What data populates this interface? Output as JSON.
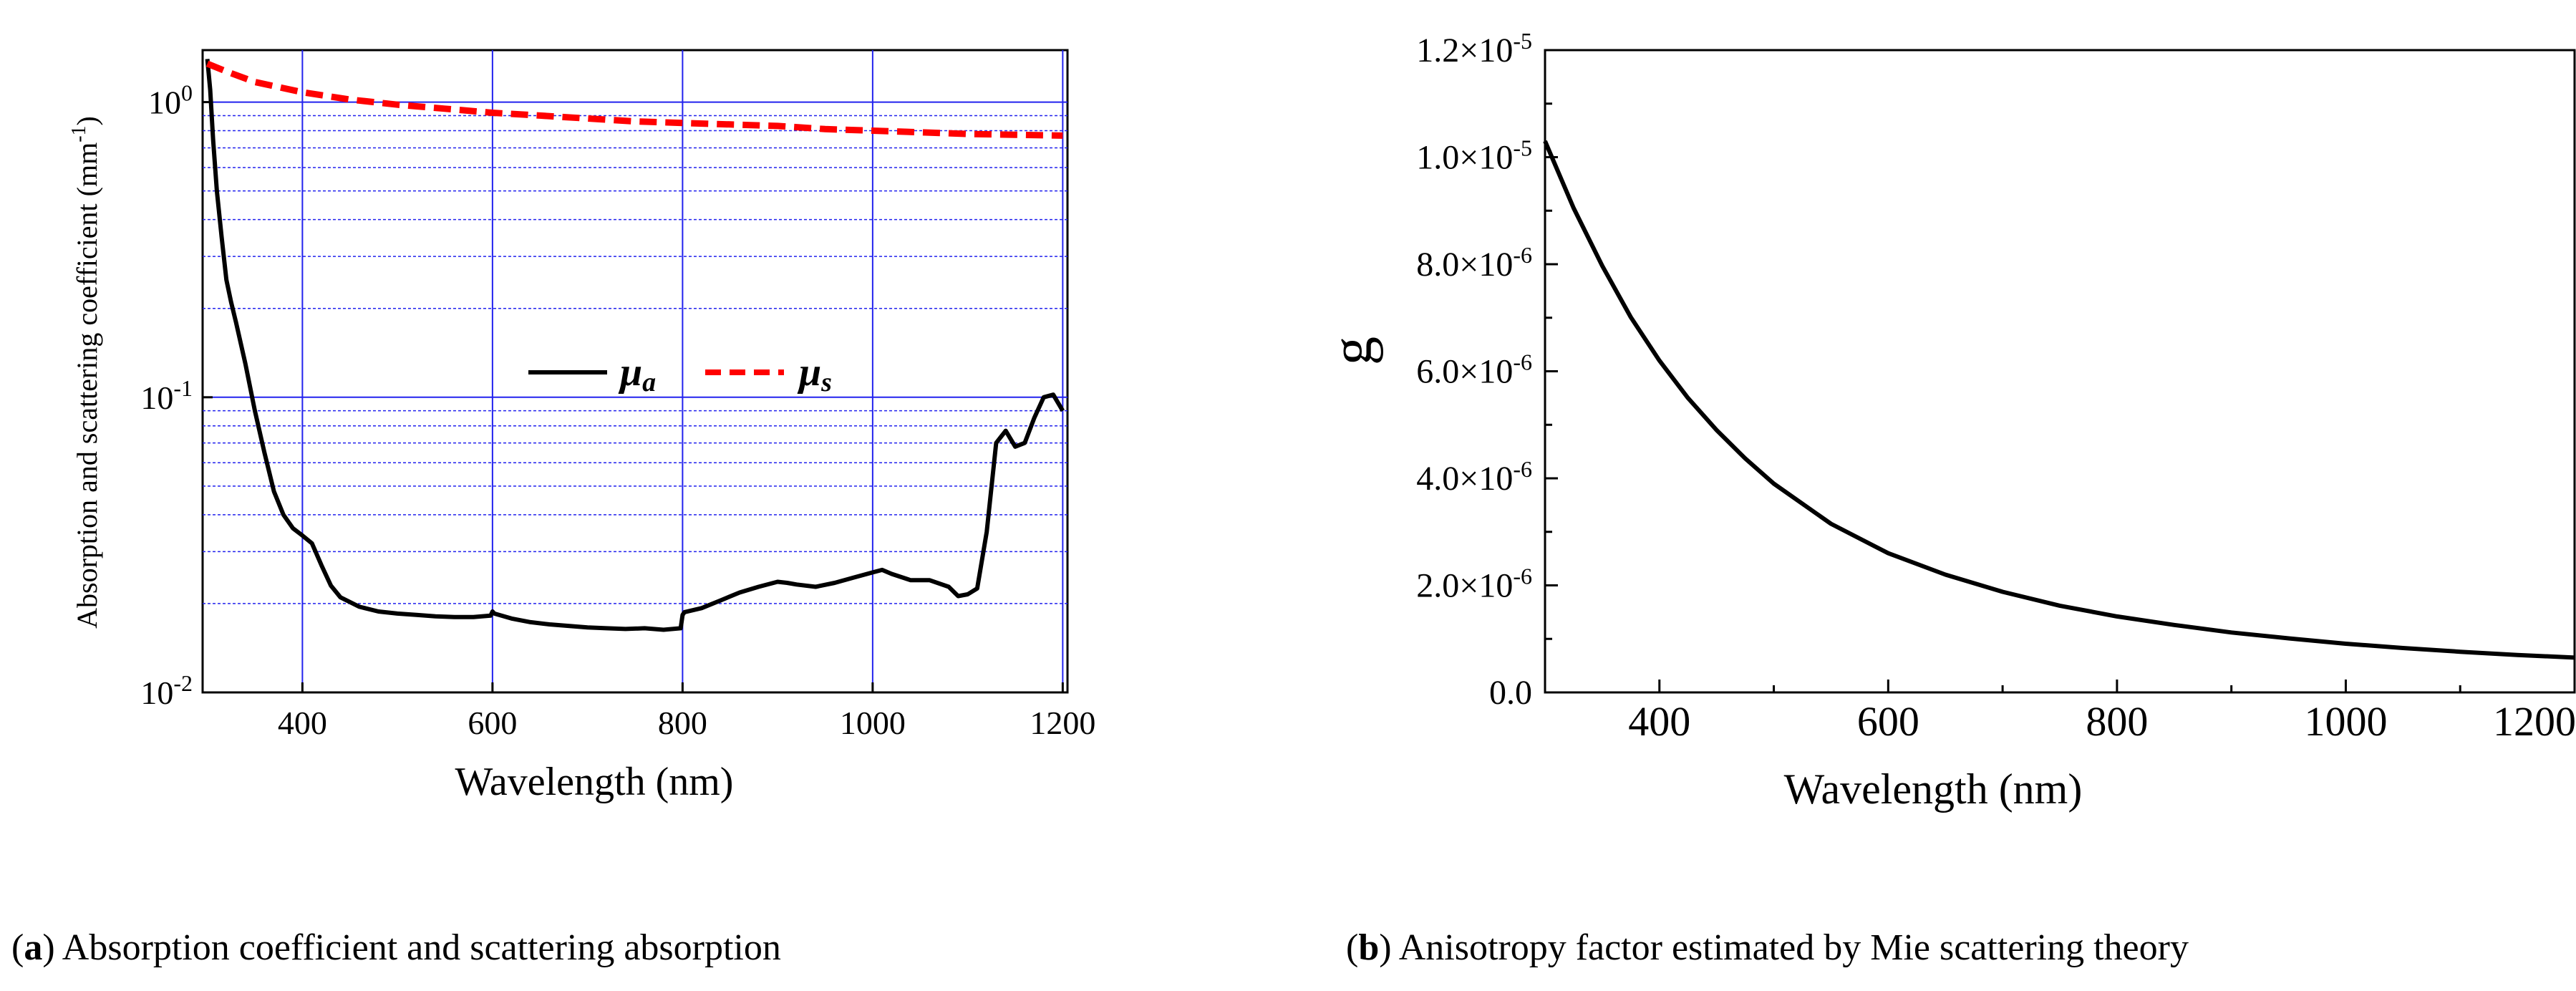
{
  "chart_data": [
    {
      "type": "line",
      "panel": "a",
      "caption_label": "a",
      "caption": "Absorption coefficient and scattering absorption",
      "xlabel": "Wavelength (nm)",
      "ylabel_main": "Absorption  and scattering coefficient (mm",
      "ylabel_sup": "-1",
      "ylabel_close": ")",
      "yscale": "log",
      "xlim": [
        295,
        1205
      ],
      "ylim": [
        0.01,
        1.5
      ],
      "grid": true,
      "xticks": [
        "400",
        "600",
        "800",
        "1000",
        "1200"
      ],
      "yticks": [
        {
          "base": "10",
          "exp": "-2",
          "value": 0.01
        },
        {
          "base": "10",
          "exp": "-1",
          "value": 0.1
        },
        {
          "base": "10",
          "exp": "0",
          "value": 1
        }
      ],
      "legend_position": "center-right",
      "series": [
        {
          "name": "μa",
          "legend_main": "μ",
          "legend_sub": "a",
          "color": "#000000",
          "style": "solid",
          "x": [
            300,
            303,
            306,
            310,
            315,
            320,
            325,
            330,
            340,
            350,
            360,
            370,
            380,
            390,
            400,
            410,
            420,
            430,
            440,
            460,
            480,
            500,
            520,
            540,
            560,
            580,
            598,
            600,
            602,
            620,
            640,
            660,
            680,
            700,
            720,
            740,
            760,
            780,
            798,
            800,
            802,
            820,
            840,
            860,
            880,
            900,
            910,
            920,
            940,
            960,
            980,
            1000,
            1010,
            1020,
            1040,
            1060,
            1080,
            1090,
            1100,
            1110,
            1120,
            1130,
            1140,
            1150,
            1160,
            1170,
            1180,
            1190,
            1200
          ],
          "y": [
            1.4,
            1.1,
            0.75,
            0.5,
            0.35,
            0.25,
            0.21,
            0.18,
            0.13,
            0.09,
            0.065,
            0.048,
            0.04,
            0.036,
            0.034,
            0.032,
            0.027,
            0.023,
            0.021,
            0.0195,
            0.0188,
            0.0185,
            0.0183,
            0.0181,
            0.018,
            0.018,
            0.0182,
            0.0188,
            0.0185,
            0.0178,
            0.0173,
            0.017,
            0.0168,
            0.0166,
            0.0165,
            0.0164,
            0.0165,
            0.0163,
            0.0165,
            0.0183,
            0.0187,
            0.0193,
            0.0205,
            0.0218,
            0.0228,
            0.0237,
            0.0235,
            0.0232,
            0.0228,
            0.0235,
            0.0245,
            0.0255,
            0.026,
            0.0252,
            0.024,
            0.024,
            0.0228,
            0.0212,
            0.0215,
            0.0225,
            0.035,
            0.07,
            0.077,
            0.068,
            0.07,
            0.085,
            0.1,
            0.102,
            0.09
          ]
        },
        {
          "name": "μs",
          "legend_main": "μ",
          "legend_sub": "s",
          "color": "#ff0000",
          "style": "dashed",
          "x": [
            300,
            320,
            350,
            400,
            450,
            500,
            550,
            600,
            650,
            700,
            750,
            800,
            850,
            900,
            950,
            1000,
            1050,
            1100,
            1150,
            1200
          ],
          "y": [
            1.35,
            1.27,
            1.17,
            1.08,
            1.02,
            0.98,
            0.95,
            0.92,
            0.9,
            0.88,
            0.86,
            0.85,
            0.84,
            0.83,
            0.81,
            0.8,
            0.79,
            0.78,
            0.775,
            0.77
          ]
        }
      ]
    },
    {
      "type": "line",
      "panel": "b",
      "caption_label": "b",
      "caption": "Anisotropy factor estimated by Mie scattering theory",
      "xlabel": "Wavelength (nm)",
      "ylabel": "g",
      "xlim": [
        300,
        1200
      ],
      "ylim": [
        0,
        1.2e-05
      ],
      "grid": false,
      "xticks": [
        "400",
        "600",
        "800",
        "1000",
        "1200"
      ],
      "yticks": [
        {
          "mant": "0.0",
          "exp": "",
          "value": 0
        },
        {
          "mant": "2.0×10",
          "exp": "-6",
          "value": 2e-06
        },
        {
          "mant": "4.0×10",
          "exp": "-6",
          "value": 4e-06
        },
        {
          "mant": "6.0×10",
          "exp": "-6",
          "value": 6e-06
        },
        {
          "mant": "8.0×10",
          "exp": "-6",
          "value": 8e-06
        },
        {
          "mant": "1.0×10",
          "exp": "-5",
          "value": 1e-05
        },
        {
          "mant": "1.2×10",
          "exp": "-5",
          "value": 1.2e-05
        }
      ],
      "series": [
        {
          "name": "g",
          "color": "#000000",
          "style": "solid",
          "x": [
            300,
            325,
            350,
            375,
            400,
            425,
            450,
            475,
            500,
            550,
            600,
            650,
            700,
            750,
            800,
            850,
            900,
            950,
            1000,
            1050,
            1100,
            1150,
            1200
          ],
          "y": [
            1.03e-05,
            9.05e-06,
            7.97e-06,
            7.01e-06,
            6.2e-06,
            5.5e-06,
            4.9e-06,
            4.37e-06,
            3.9e-06,
            3.15e-06,
            2.6e-06,
            2.2e-06,
            1.88e-06,
            1.62e-06,
            1.42e-06,
            1.26e-06,
            1.12e-06,
            1.01e-06,
            9.1e-07,
            8.3e-07,
            7.6e-07,
            7e-07,
            6.5e-07
          ]
        }
      ]
    }
  ]
}
